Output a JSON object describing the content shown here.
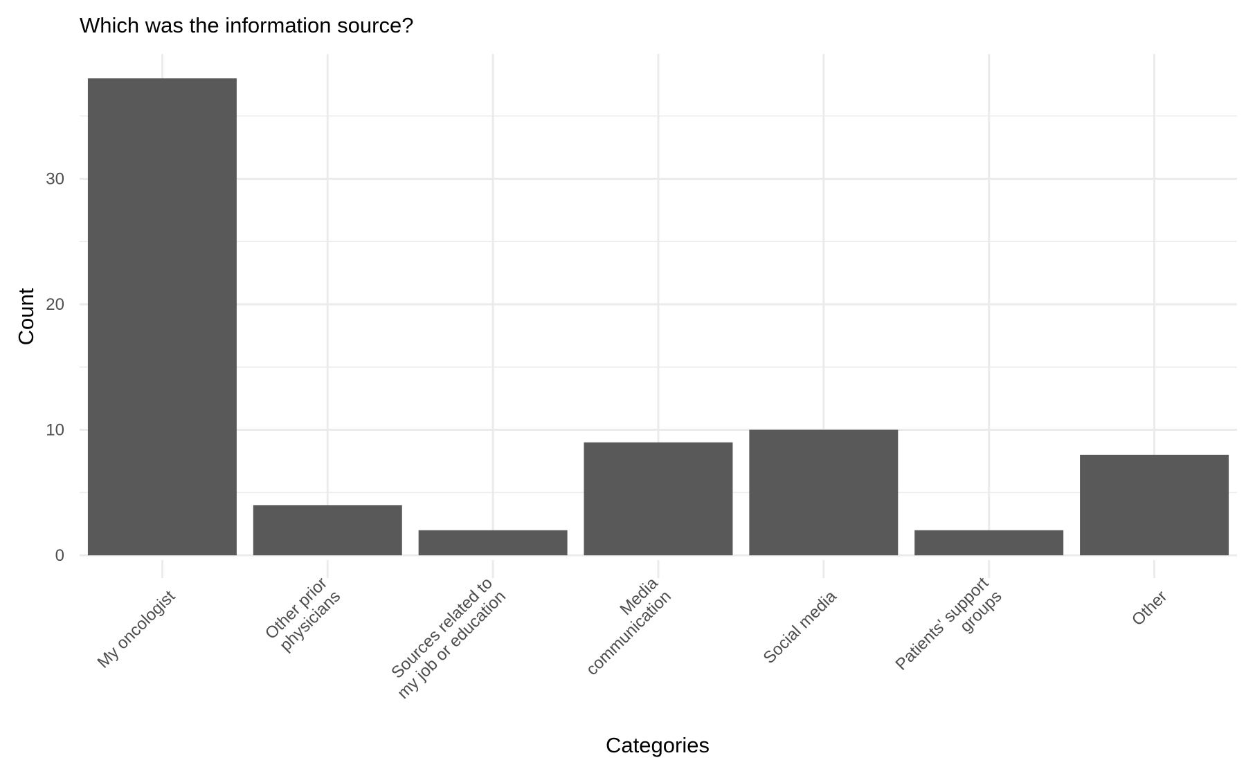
{
  "chart_data": {
    "type": "bar",
    "title": "Which was the information source?",
    "xlabel": "Categories",
    "ylabel": "Count",
    "categories": [
      "My oncologist",
      "Other prior physicians",
      "Sources related to my job or education",
      "Media communication",
      "Social media",
      "Patients' support groups",
      "Other"
    ],
    "category_label_lines": [
      [
        "My oncologist"
      ],
      [
        "Other prior",
        "physicians"
      ],
      [
        "Sources related to",
        "my job or education"
      ],
      [
        "Media",
        "communication"
      ],
      [
        "Social media"
      ],
      [
        "Patients' support",
        "groups"
      ],
      [
        "Other"
      ]
    ],
    "values": [
      38,
      4,
      2,
      9,
      10,
      2,
      8
    ],
    "ylim": [
      0,
      39.9
    ],
    "yticks": [
      0,
      10,
      20,
      30
    ],
    "ytick_labels": [
      "0",
      "10",
      "20",
      "30"
    ],
    "grid": true,
    "bar_color": "#595959",
    "grid_color": "#ebebeb"
  }
}
